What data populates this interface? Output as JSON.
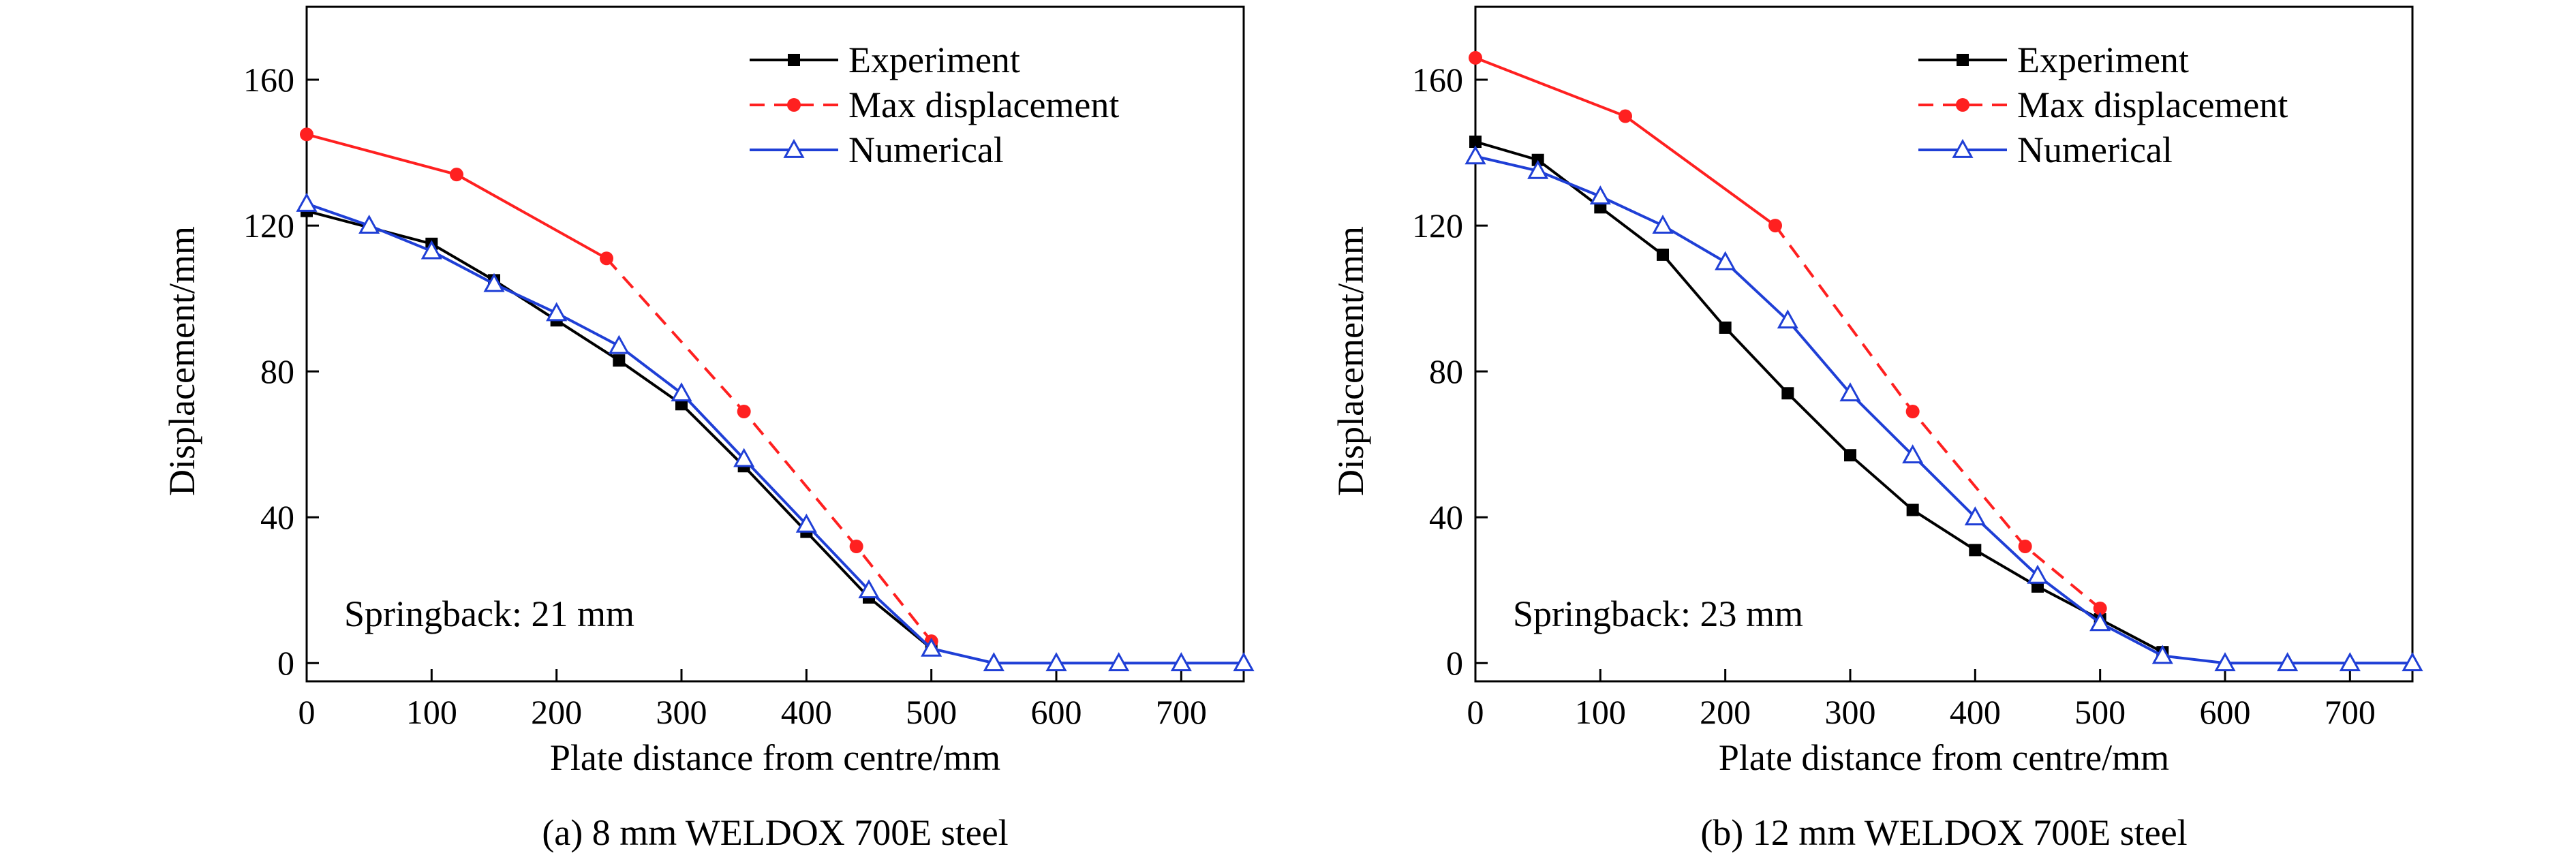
{
  "chart_data": [
    {
      "type": "line",
      "panel": "a",
      "caption": "(a) 8 mm WELDOX 700E steel",
      "xlabel": "Plate distance from centre/mm",
      "ylabel": "Displacement/mm",
      "xlim": [
        0,
        750
      ],
      "ylim": [
        -5,
        180
      ],
      "xticks": [
        0,
        100,
        200,
        300,
        400,
        500,
        600,
        700
      ],
      "yticks": [
        0,
        40,
        80,
        120,
        160
      ],
      "annotation": "Springback: 21 mm",
      "legend_position": "top-right",
      "series": [
        {
          "name": "Experiment",
          "color": "#000000",
          "marker": "square",
          "style": "solid",
          "x": [
            0,
            100,
            150,
            200,
            250,
            300,
            350,
            400,
            450,
            500
          ],
          "y": [
            124,
            115,
            105,
            94,
            83,
            71,
            54,
            36,
            18,
            4
          ]
        },
        {
          "name": "Max displacement",
          "color": "#ff2020",
          "marker": "circle",
          "style": "solid-then-dashed",
          "dash_from_index": 2,
          "x": [
            0,
            120,
            240,
            350,
            440,
            500
          ],
          "y": [
            145,
            134,
            111,
            69,
            32,
            6
          ]
        },
        {
          "name": "Numerical",
          "color": "#1f3fd6",
          "marker": "triangle",
          "style": "solid",
          "x": [
            0,
            50,
            100,
            150,
            200,
            250,
            300,
            350,
            400,
            450,
            500,
            550,
            600,
            650,
            700,
            750
          ],
          "y": [
            126,
            120,
            113,
            104,
            96,
            87,
            74,
            56,
            38,
            20,
            4,
            0,
            0,
            0,
            0,
            0
          ]
        }
      ]
    },
    {
      "type": "line",
      "panel": "b",
      "caption": "(b) 12 mm WELDOX 700E steel",
      "xlabel": "Plate distance from centre/mm",
      "ylabel": "Displacement/mm",
      "xlim": [
        0,
        750
      ],
      "ylim": [
        -5,
        180
      ],
      "xticks": [
        0,
        100,
        200,
        300,
        400,
        500,
        600,
        700
      ],
      "yticks": [
        0,
        40,
        80,
        120,
        160
      ],
      "annotation": "Springback: 23 mm",
      "legend_position": "top-right",
      "series": [
        {
          "name": "Experiment",
          "color": "#000000",
          "marker": "square",
          "style": "solid",
          "x": [
            0,
            50,
            100,
            150,
            200,
            250,
            300,
            350,
            400,
            450,
            500,
            550
          ],
          "y": [
            143,
            138,
            125,
            112,
            92,
            74,
            57,
            42,
            31,
            21,
            12,
            3
          ]
        },
        {
          "name": "Max displacement",
          "color": "#ff2020",
          "marker": "circle",
          "style": "solid-then-dashed",
          "dash_from_index": 2,
          "x": [
            0,
            120,
            240,
            350,
            440,
            500
          ],
          "y": [
            166,
            150,
            120,
            69,
            32,
            15
          ]
        },
        {
          "name": "Numerical",
          "color": "#1f3fd6",
          "marker": "triangle",
          "style": "solid",
          "x": [
            0,
            50,
            100,
            150,
            200,
            250,
            300,
            350,
            400,
            450,
            500,
            550,
            600,
            650,
            700,
            750
          ],
          "y": [
            139,
            135,
            128,
            120,
            110,
            94,
            74,
            57,
            40,
            24,
            11,
            2,
            0,
            0,
            0,
            0
          ]
        }
      ]
    }
  ]
}
